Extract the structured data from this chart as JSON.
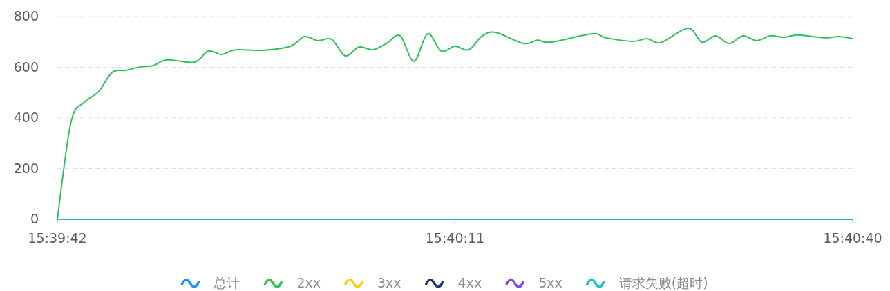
{
  "chart_data": {
    "type": "line",
    "x": [
      15.661667,
      15.661944,
      15.662222,
      15.6625,
      15.662778,
      15.663056,
      15.663333,
      15.663611,
      15.663889,
      15.664444,
      15.664722,
      15.665,
      15.665278,
      15.665833,
      15.666389,
      15.666667,
      15.666944,
      15.667222,
      15.6675,
      15.667778,
      15.668056,
      15.668333,
      15.668611,
      15.668889,
      15.669167,
      15.669444,
      15.669722,
      15.67,
      15.670278,
      15.670556,
      15.671111,
      15.671389,
      15.671667,
      15.6725,
      15.672778,
      15.673333,
      15.673611,
      15.673889,
      15.674444,
      15.674722,
      15.675,
      15.675278,
      15.675556,
      15.675833,
      15.676111,
      15.676389,
      15.676667,
      15.677222,
      15.6775,
      15.677778
    ],
    "series": [
      {
        "name": "总计",
        "color": "#1890ff",
        "values": [
          null,
          null,
          null,
          null,
          null,
          null,
          null,
          null,
          null,
          null,
          null,
          null,
          null,
          null,
          null,
          null,
          null,
          null,
          null,
          null,
          null,
          null,
          null,
          null,
          null,
          null,
          null,
          null,
          null,
          null,
          null,
          null,
          null,
          null,
          null,
          null,
          null,
          null,
          null,
          null,
          null,
          null,
          null,
          null,
          null,
          null,
          null,
          null,
          null,
          null
        ]
      },
      {
        "name": "2xx",
        "color": "#2fc25b",
        "values": [
          0,
          384,
          463,
          503,
          580,
          588,
          601,
          607,
          629,
          620,
          664,
          650,
          669,
          667,
          683,
          721,
          705,
          710,
          645,
          680,
          669,
          694,
          724,
          623,
          732,
          664,
          683,
          669,
          724,
          737,
          694,
          707,
          699,
          732,
          716,
          702,
          713,
          697,
          754,
          699,
          724,
          694,
          724,
          705,
          724,
          718,
          727,
          716,
          721,
          713
        ]
      },
      {
        "name": "3xx",
        "color": "#facc14",
        "values": [
          null,
          null,
          null,
          null,
          null,
          null,
          null,
          null,
          null,
          null,
          null,
          null,
          null,
          null,
          null,
          null,
          null,
          null,
          null,
          null,
          null,
          null,
          null,
          null,
          null,
          null,
          null,
          null,
          null,
          null,
          null,
          null,
          null,
          null,
          null,
          null,
          null,
          null,
          null,
          null,
          null,
          null,
          null,
          null,
          null,
          null,
          null,
          null,
          null,
          null
        ]
      },
      {
        "name": "4xx",
        "color": "#223273",
        "values": [
          null,
          null,
          null,
          null,
          null,
          null,
          null,
          null,
          null,
          null,
          null,
          null,
          null,
          null,
          null,
          null,
          null,
          null,
          null,
          null,
          null,
          null,
          null,
          null,
          null,
          null,
          null,
          null,
          null,
          null,
          null,
          null,
          null,
          null,
          null,
          null,
          null,
          null,
          null,
          null,
          null,
          null,
          null,
          null,
          null,
          null,
          null,
          null,
          null,
          null
        ]
      },
      {
        "name": "5xx",
        "color": "#8543e0",
        "values": [
          null,
          null,
          null,
          null,
          null,
          null,
          null,
          null,
          null,
          null,
          null,
          null,
          null,
          null,
          null,
          null,
          null,
          null,
          null,
          null,
          null,
          null,
          null,
          null,
          null,
          null,
          null,
          null,
          null,
          null,
          null,
          null,
          null,
          null,
          null,
          null,
          null,
          null,
          null,
          null,
          null,
          null,
          null,
          null,
          null,
          null,
          null,
          null,
          null,
          null
        ]
      },
      {
        "name": "请求失败(超时)",
        "color": "#13c2c2",
        "values": [
          0,
          0,
          0,
          0,
          0,
          0,
          0,
          0,
          0,
          0,
          0,
          0,
          0,
          0,
          0,
          0,
          0,
          0,
          0,
          0,
          0,
          0,
          0,
          0,
          0,
          0,
          0,
          0,
          0,
          0,
          0,
          0,
          0,
          0,
          0,
          0,
          0,
          0,
          0,
          0,
          0,
          0,
          0,
          0,
          0,
          0,
          0,
          0,
          0,
          0
        ]
      }
    ],
    "xlim": [
      15.661667,
      15.677778
    ],
    "xticks": [
      {
        "value": 15.661667,
        "label": "15:39:42"
      },
      {
        "value": 15.669722,
        "label": "15:40:11"
      },
      {
        "value": 15.677778,
        "label": "15:40:40"
      }
    ],
    "ylim": [
      0,
      800
    ],
    "yticks": [
      0,
      200,
      400,
      600,
      800
    ],
    "grid": "y",
    "legend": "bottom",
    "marker": "none",
    "line_style": "solid"
  }
}
